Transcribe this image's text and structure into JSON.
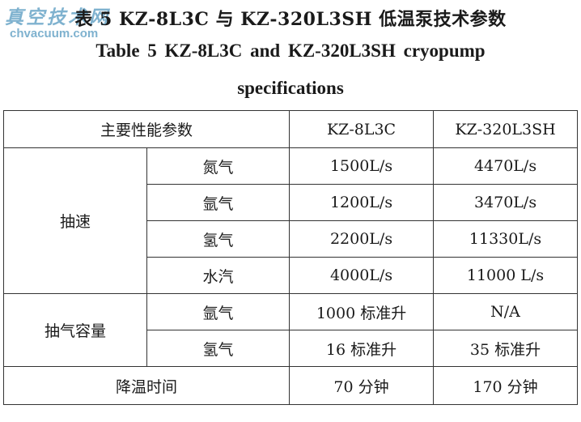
{
  "watermark": {
    "cn": "真空技术网",
    "url": "chvacuum.com"
  },
  "title_cn": "表 5   KZ-8L3C 与 KZ-320L3SH 低温泵技术参数",
  "title_en_line1": "Table 5   KZ-8L3C and KZ-320L3SH cryopump",
  "title_en_line2": "specifications",
  "table": {
    "header": {
      "param": "主要性能参数",
      "model_a": "KZ-8L3C",
      "model_b": "KZ-320L3SH"
    },
    "pumping_speed": {
      "label": "抽速",
      "rows": [
        {
          "gas": "氮气",
          "a": "1500L/s",
          "b": "4470L/s"
        },
        {
          "gas": "氩气",
          "a": "1200L/s",
          "b": "3470L/s"
        },
        {
          "gas": "氢气",
          "a": "2200L/s",
          "b": "11330L/s"
        },
        {
          "gas": "水汽",
          "a": "4000L/s",
          "b": "11000 L/s"
        }
      ]
    },
    "capacity": {
      "label": "抽气容量",
      "rows": [
        {
          "gas": "氩气",
          "a": "1000 标准升",
          "b": "N/A"
        },
        {
          "gas": "氢气",
          "a": "16 标准升",
          "b": "35 标准升"
        }
      ]
    },
    "cooldown": {
      "label": "降温时间",
      "a": "70 分钟",
      "b": "170 分钟"
    }
  }
}
